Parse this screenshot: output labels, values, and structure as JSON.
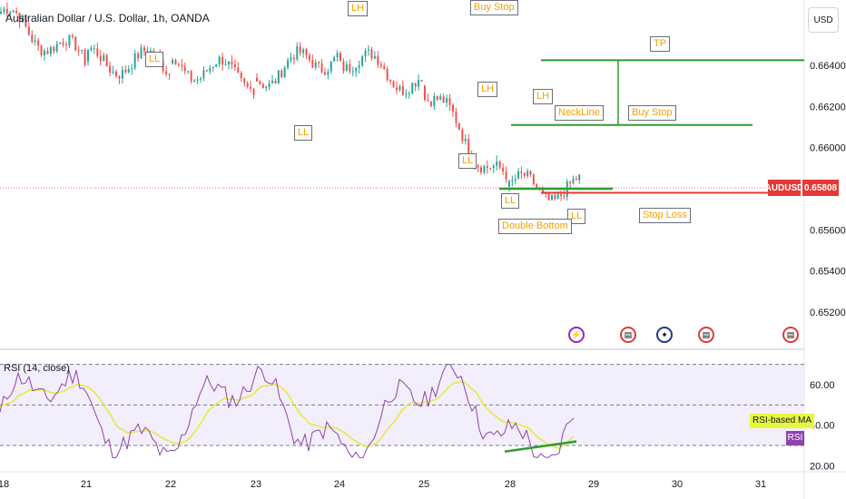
{
  "header": {
    "symbol_title": "Australian Dollar / U.S. Dollar, 1h, OANDA",
    "currency_label": "USD"
  },
  "chart_data": [
    {
      "type": "line",
      "title": "Australian Dollar / U.S. Dollar, 1h, OANDA",
      "y_tick_labels": [
        "0.66400",
        "0.66200",
        "0.66000",
        "0.65600",
        "0.65400",
        "0.65200"
      ],
      "x_tick_labels": [
        "18",
        "21",
        "22",
        "23",
        "24",
        "25",
        "28",
        "29",
        "30",
        "31"
      ],
      "last_price_label": "AUDUSD",
      "last_price": "0.65808",
      "x": [
        "18",
        "21",
        "22",
        "23",
        "24",
        "25",
        "28",
        "29",
        "30",
        "31"
      ],
      "series": [
        {
          "values": [
            0.6665,
            0.6642,
            0.6641,
            0.6634,
            0.6646,
            0.663,
            0.6581,
            0.6579,
            null,
            null
          ]
        }
      ],
      "levels": [
        {
          "name": "TP",
          "value": 0.66425
        },
        {
          "name": "Buy Stop",
          "value": 0.6611
        },
        {
          "name": "Stop Loss",
          "value": 0.6578
        },
        {
          "name": "Double Bottom",
          "value": 0.658
        }
      ],
      "annotations": {
        "lh_top": "LH",
        "ll_left": "LL",
        "ll_mid": "LL",
        "lh_right1": "LH",
        "ll_right1": "LL",
        "lh_right2": "LH",
        "ll_bottom1": "LL",
        "ll_bottom2": "LL",
        "buy_stop_top": "Buy Stop",
        "tp": "TP",
        "neckline": "NeckLine",
        "buy_stop": "Buy Stop",
        "stop_loss": "Stop Loss",
        "double_bottom": "Double Bottom"
      },
      "ylim": [
        0.651,
        0.6676
      ]
    },
    {
      "type": "line",
      "title": "RSI (14, close)",
      "y_tick_labels": [
        "60.00",
        "40.00",
        "20.00"
      ],
      "series": [
        {
          "name": "RSI",
          "color": "#8e44ad"
        },
        {
          "name": "RSI-based MA",
          "color": "#e8e83a"
        }
      ],
      "bands": [
        70,
        50,
        30
      ],
      "ylim": [
        20,
        72
      ]
    }
  ],
  "rsi": {
    "ma_label": "RSI-based MA",
    "rsi_label": "RSI"
  },
  "colors": {
    "up": "#26a69a",
    "down": "#ef5350",
    "green_line": "#2e9e2e",
    "red_line": "#e53935",
    "annotation_text": "#f5a100"
  },
  "event_icons": [
    "lightning-icon",
    "us-flag-icon",
    "au-flag-icon",
    "us-flag-icon",
    "us-flag-icon"
  ]
}
